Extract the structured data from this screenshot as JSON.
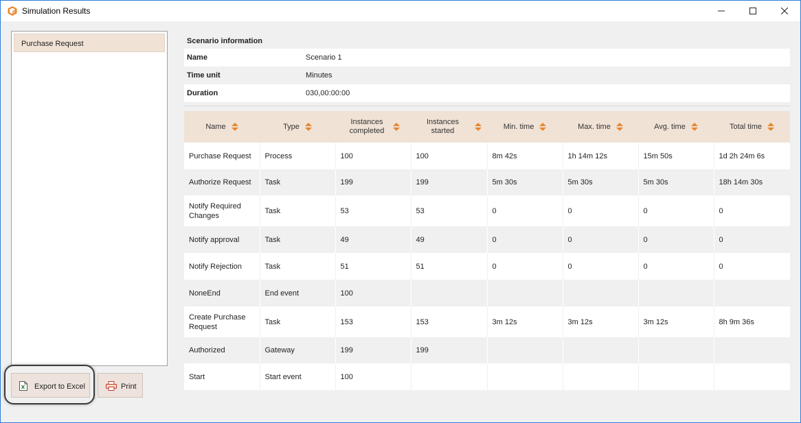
{
  "window": {
    "title": "Simulation Results"
  },
  "colors": {
    "accent": "#e8872e",
    "header_bg": "#f1e2d6",
    "selection_bg": "#f1e2d6",
    "frame": "#2b7bd8"
  },
  "icons": {
    "app": "box-icon",
    "minimize": "minimize-icon",
    "maximize": "maximize-icon",
    "close": "close-icon",
    "export": "excel-file-icon",
    "print": "printer-icon",
    "sort": "sort-arrows-icon"
  },
  "tree": {
    "items": [
      {
        "label": "Purchase Request",
        "selected": true
      }
    ]
  },
  "buttons": {
    "export_label": "Export to Excel",
    "print_label": "Print"
  },
  "scenario": {
    "title": "Scenario information",
    "rows": [
      {
        "label": "Name",
        "value": "Scenario 1"
      },
      {
        "label": "Time unit",
        "value": "Minutes"
      },
      {
        "label": "Duration",
        "value": "030,00:00:00"
      }
    ]
  },
  "table": {
    "columns": [
      "Name",
      "Type",
      "Instances completed",
      "Instances started",
      "Min. time",
      "Max. time",
      "Avg. time",
      "Total time"
    ],
    "rows": [
      [
        "Purchase Request",
        "Process",
        "100",
        "100",
        "8m 42s",
        "1h 14m 12s",
        "15m 50s",
        "1d 2h 24m 6s"
      ],
      [
        "Authorize Request",
        "Task",
        "199",
        "199",
        "5m 30s",
        "5m 30s",
        "5m 30s",
        "18h 14m 30s"
      ],
      [
        "Notify Required Changes",
        "Task",
        "53",
        "53",
        "0",
        "0",
        "0",
        "0"
      ],
      [
        "Notify approval",
        "Task",
        "49",
        "49",
        "0",
        "0",
        "0",
        "0"
      ],
      [
        "Notify Rejection",
        "Task",
        "51",
        "51",
        "0",
        "0",
        "0",
        "0"
      ],
      [
        "NoneEnd",
        "End event",
        "100",
        "",
        "",
        "",
        "",
        ""
      ],
      [
        "Create Purchase Request",
        "Task",
        "153",
        "153",
        "3m 12s",
        "3m 12s",
        "3m 12s",
        "8h 9m 36s"
      ],
      [
        "Authorized",
        "Gateway",
        "199",
        "199",
        "",
        "",
        "",
        ""
      ],
      [
        "Start",
        "Start event",
        "100",
        "",
        "",
        "",
        "",
        ""
      ]
    ]
  }
}
